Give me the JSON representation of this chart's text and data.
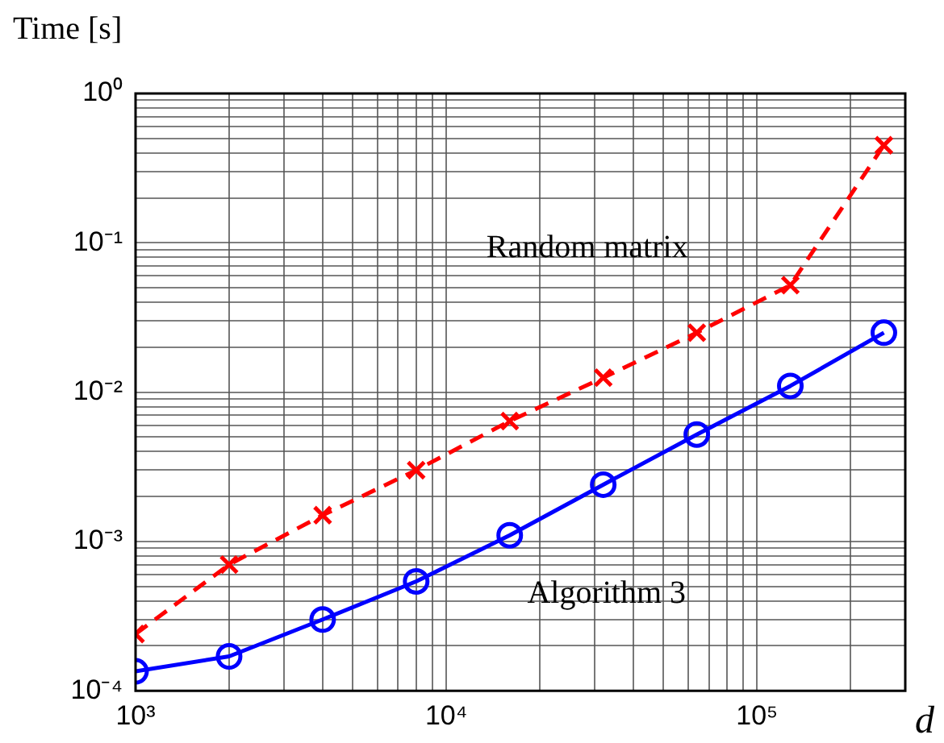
{
  "chart_data": {
    "type": "line",
    "xlabel": "d",
    "ylabel": "Time [s]",
    "log": "xy",
    "grid": true,
    "legend": false,
    "xlim": [
      1000,
      300000
    ],
    "xticks": [
      {
        "value": 1000,
        "label": "10³"
      },
      {
        "value": 2000,
        "label": null
      },
      {
        "value": 3000,
        "label": null
      },
      {
        "value": 4000,
        "label": null
      },
      {
        "value": 5000,
        "label": null
      },
      {
        "value": 6000,
        "label": null
      },
      {
        "value": 7000,
        "label": null
      },
      {
        "value": 8000,
        "label": null
      },
      {
        "value": 9000,
        "label": null
      },
      {
        "value": 10000,
        "label": "10⁴"
      },
      {
        "value": 20000,
        "label": null
      },
      {
        "value": 30000,
        "label": null
      },
      {
        "value": 40000,
        "label": null
      },
      {
        "value": 50000,
        "label": null
      },
      {
        "value": 60000,
        "label": null
      },
      {
        "value": 70000,
        "label": null
      },
      {
        "value": 80000,
        "label": null
      },
      {
        "value": 90000,
        "label": null
      },
      {
        "value": 100000,
        "label": "10⁵"
      },
      {
        "value": 200000,
        "label": null
      },
      {
        "value": 300000,
        "label": null
      }
    ],
    "ylim": [
      0.0001,
      1
    ],
    "yticks": [
      {
        "value": 0.0001,
        "label": "10⁻⁴"
      },
      {
        "value": 0.0002,
        "label": null
      },
      {
        "value": 0.0003,
        "label": null
      },
      {
        "value": 0.0004,
        "label": null
      },
      {
        "value": 0.0005,
        "label": null
      },
      {
        "value": 0.0006,
        "label": null
      },
      {
        "value": 0.0007,
        "label": null
      },
      {
        "value": 0.0008,
        "label": null
      },
      {
        "value": 0.0009,
        "label": null
      },
      {
        "value": 0.001,
        "label": "10⁻³"
      },
      {
        "value": 0.002,
        "label": null
      },
      {
        "value": 0.003,
        "label": null
      },
      {
        "value": 0.004,
        "label": null
      },
      {
        "value": 0.005,
        "label": null
      },
      {
        "value": 0.006,
        "label": null
      },
      {
        "value": 0.007,
        "label": null
      },
      {
        "value": 0.008,
        "label": null
      },
      {
        "value": 0.009,
        "label": null
      },
      {
        "value": 0.01,
        "label": "10⁻²"
      },
      {
        "value": 0.02,
        "label": null
      },
      {
        "value": 0.03,
        "label": null
      },
      {
        "value": 0.04,
        "label": null
      },
      {
        "value": 0.05,
        "label": null
      },
      {
        "value": 0.06,
        "label": null
      },
      {
        "value": 0.07,
        "label": null
      },
      {
        "value": 0.08,
        "label": null
      },
      {
        "value": 0.09,
        "label": null
      },
      {
        "value": 0.1,
        "label": "10⁻¹"
      },
      {
        "value": 0.2,
        "label": null
      },
      {
        "value": 0.3,
        "label": null
      },
      {
        "value": 0.4,
        "label": null
      },
      {
        "value": 0.5,
        "label": null
      },
      {
        "value": 0.6,
        "label": null
      },
      {
        "value": 0.7,
        "label": null
      },
      {
        "value": 0.8,
        "label": null
      },
      {
        "value": 0.9,
        "label": null
      },
      {
        "value": 1,
        "label": "10⁰"
      }
    ],
    "x": [
      1000,
      2000,
      4000,
      8000,
      16000,
      32000,
      64000,
      128000,
      256000
    ],
    "series": [
      {
        "name": "Random matrix",
        "color": "#ff0000",
        "marker": "cross",
        "line_style": "dashed",
        "values": [
          0.00024,
          0.0007,
          0.0015,
          0.003,
          0.0064,
          0.0125,
          0.025,
          0.052,
          0.45
        ]
      },
      {
        "name": "Algorithm 3",
        "color": "#0000ff",
        "marker": "circle",
        "line_style": "solid",
        "values": [
          0.000135,
          0.00017,
          0.0003,
          0.00054,
          0.0011,
          0.0024,
          0.0052,
          0.011,
          0.025
        ]
      }
    ]
  }
}
